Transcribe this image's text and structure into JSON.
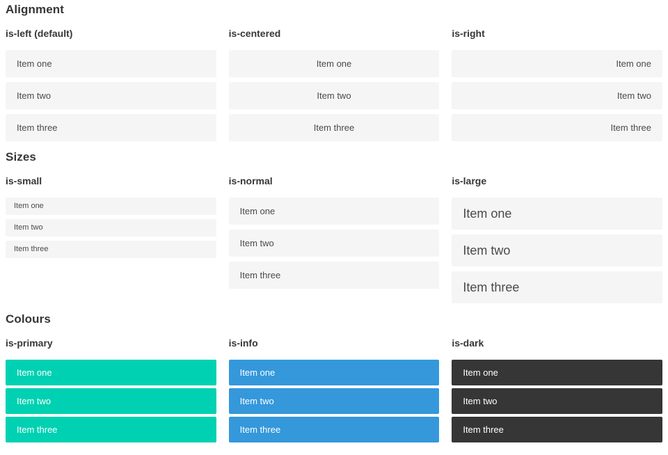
{
  "sections": [
    {
      "title": "Alignment",
      "columns": [
        {
          "label": "is-left (default)",
          "items": [
            "Item one",
            "Item two",
            "Item three"
          ]
        },
        {
          "label": "is-centered",
          "items": [
            "Item one",
            "Item two",
            "Item three"
          ]
        },
        {
          "label": "is-right",
          "items": [
            "Item one",
            "Item two",
            "Item three"
          ]
        }
      ]
    },
    {
      "title": "Sizes",
      "columns": [
        {
          "label": "is-small",
          "items": [
            "Item one",
            "Item two",
            "Item three"
          ]
        },
        {
          "label": "is-normal",
          "items": [
            "Item one",
            "Item two",
            "Item three"
          ]
        },
        {
          "label": "is-large",
          "items": [
            "Item one",
            "Item two",
            "Item three"
          ]
        }
      ]
    },
    {
      "title": "Colours",
      "columns": [
        {
          "label": "is-primary",
          "items": [
            "Item one",
            "Item two",
            "Item three"
          ]
        },
        {
          "label": "is-info",
          "items": [
            "Item one",
            "Item two",
            "Item three"
          ]
        },
        {
          "label": "is-dark",
          "items": [
            "Item one",
            "Item two",
            "Item three"
          ]
        }
      ]
    }
  ],
  "colors": {
    "primary": "#00d1b2",
    "info": "#3498db",
    "dark": "#363636",
    "item_bg": "#f5f5f5",
    "heading_text": "#363636",
    "item_text": "#4a4a4a",
    "colored_item_text": "#ffffff"
  }
}
